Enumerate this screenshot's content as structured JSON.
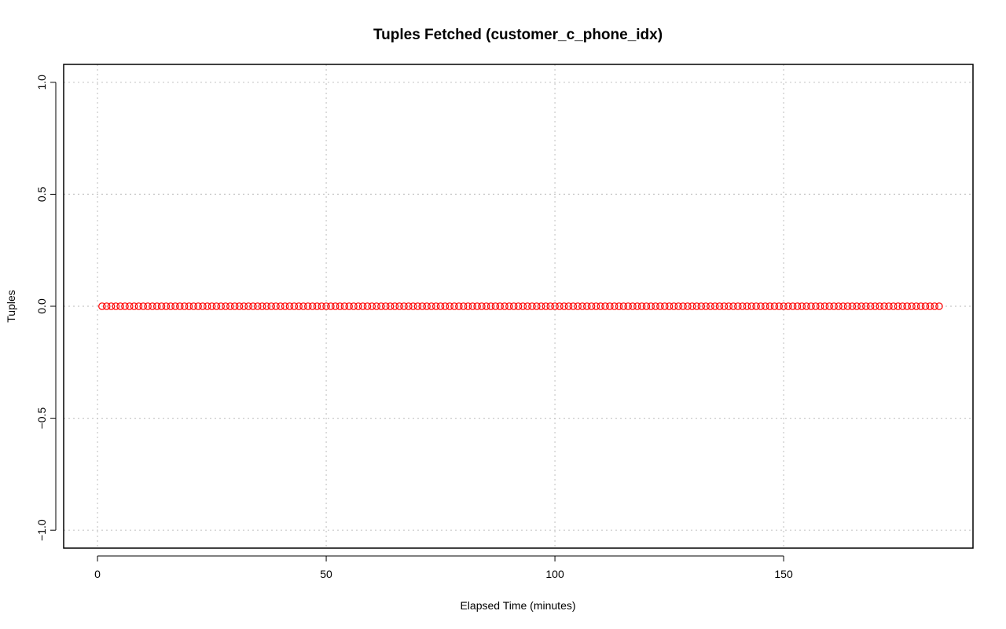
{
  "chart_data": {
    "type": "scatter",
    "title": "Tuples Fetched (customer_c_phone_idx)",
    "xlabel": "Elapsed Time (minutes)",
    "ylabel": "Tuples",
    "xlim": [
      -7.4,
      191.4
    ],
    "ylim": [
      -1.08,
      1.08
    ],
    "x_ticks": [
      0,
      50,
      100,
      150
    ],
    "x_tick_labels": [
      "0",
      "50",
      "100",
      "150"
    ],
    "y_ticks": [
      -1.0,
      -0.5,
      0.0,
      0.5,
      1.0
    ],
    "y_tick_labels": [
      "−1.0",
      "−0.5",
      "0.0",
      "0.5",
      "1.0"
    ],
    "grid": true,
    "marker": "open-circle",
    "point_color": "#ff0000",
    "series": [
      {
        "x_start": 1,
        "x_end": 184,
        "x_step": 1,
        "y_constant": 0
      }
    ]
  }
}
